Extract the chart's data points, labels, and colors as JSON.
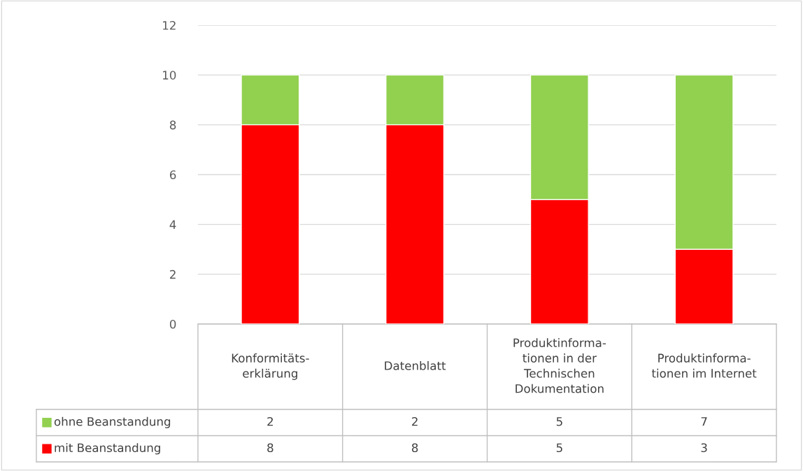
{
  "chart_data": {
    "type": "bar",
    "stacked": true,
    "categories": [
      "Konformitäts-\nerklärung",
      "Datenblatt",
      "Produktinforma-\ntionen in der\nTechnischen\nDokumentation",
      "Produktinforma-\ntionen im Internet"
    ],
    "series": [
      {
        "name": "mit Beanstandung",
        "color": "#ff0000",
        "values": [
          8,
          8,
          5,
          3
        ]
      },
      {
        "name": "ohne Beanstandung",
        "color": "#92d050",
        "values": [
          2,
          2,
          5,
          7
        ]
      }
    ],
    "ylim": [
      0,
      12
    ],
    "yticks": [
      0,
      2,
      4,
      6,
      8,
      10,
      12
    ],
    "grid": "y",
    "legend": "bottom",
    "data_labels": true
  }
}
